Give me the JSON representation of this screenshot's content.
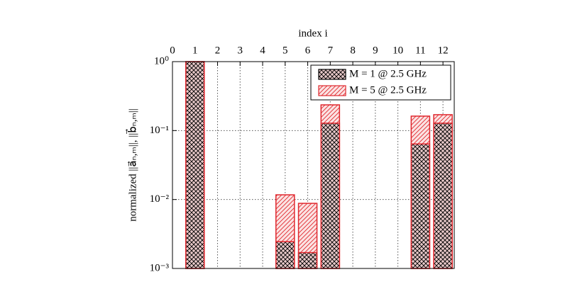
{
  "chart_data": {
    "type": "bar",
    "x_label": "index i",
    "y_label": "normalized ||a⃗ₙ,ₘ||, ||b⃗ₙ,ₘ||",
    "x": [
      1,
      5,
      6,
      7,
      11,
      12
    ],
    "series": [
      {
        "name": "M = 5 @ 2.5 GHz",
        "color": "#e0282e",
        "values": [
          1.0,
          0.0117,
          0.0088,
          0.236,
          0.162,
          0.17
        ]
      },
      {
        "name": "M = 1 @ 2.5 GHz",
        "color": "#000000",
        "values": [
          1.0,
          0.00245,
          0.0017,
          0.128,
          0.064,
          0.128
        ]
      }
    ],
    "xlim": [
      0,
      12.5
    ],
    "xticks": [
      0,
      1,
      2,
      3,
      4,
      5,
      6,
      7,
      8,
      9,
      10,
      11,
      12
    ],
    "ylim": [
      0.001,
      1
    ],
    "y_scale": "log",
    "yticks": [
      {
        "value": 1,
        "label": "10⁰"
      },
      {
        "value": 0.1,
        "label": "10⁻¹"
      },
      {
        "value": 0.01,
        "label": "10⁻²"
      },
      {
        "value": 0.001,
        "label": "10⁻³"
      }
    ],
    "grid": true,
    "legend": "top-right"
  }
}
